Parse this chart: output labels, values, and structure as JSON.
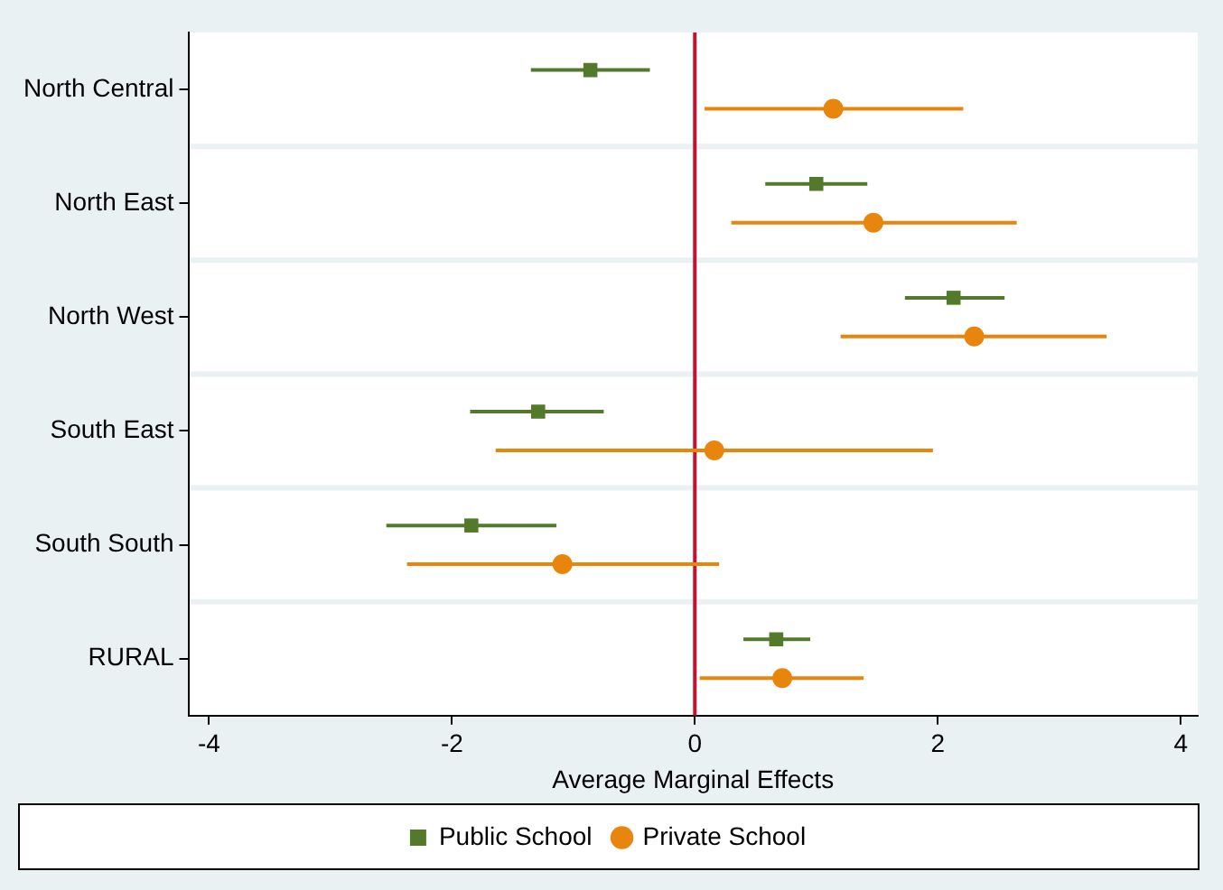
{
  "chart_data": {
    "type": "scatter",
    "orientation": "horizontal",
    "xlabel": "Average Marginal Effects",
    "categories": [
      "North Central",
      "North East",
      "North West",
      "South East",
      "South South",
      "RURAL"
    ],
    "xlim": [
      -4.17,
      4.14
    ],
    "xticks": [
      -4,
      -2,
      0,
      2,
      4
    ],
    "grid": "y",
    "legend": "bottom",
    "ref_lines": [
      {
        "axis": "x",
        "value": 0,
        "color": "#c8102e"
      }
    ],
    "series": [
      {
        "name": "Public School",
        "color": "#537a2b",
        "marker": "square",
        "values": [
          -0.86,
          1.0,
          2.13,
          -1.29,
          -1.84,
          0.67
        ],
        "errors": [
          [
            -1.35,
            -0.37
          ],
          [
            0.58,
            1.42
          ],
          [
            1.73,
            2.55
          ],
          [
            -1.85,
            -0.75
          ],
          [
            -2.54,
            -1.14
          ],
          [
            0.4,
            0.95
          ]
        ]
      },
      {
        "name": "Private School",
        "color": "#e8850c",
        "marker": "circle",
        "values": [
          1.14,
          1.47,
          2.3,
          0.16,
          -1.09,
          0.72
        ],
        "errors": [
          [
            0.08,
            2.21
          ],
          [
            0.3,
            2.65
          ],
          [
            1.2,
            3.39
          ],
          [
            -1.64,
            1.96
          ],
          [
            -2.37,
            0.2
          ],
          [
            0.04,
            1.39
          ]
        ]
      }
    ]
  }
}
